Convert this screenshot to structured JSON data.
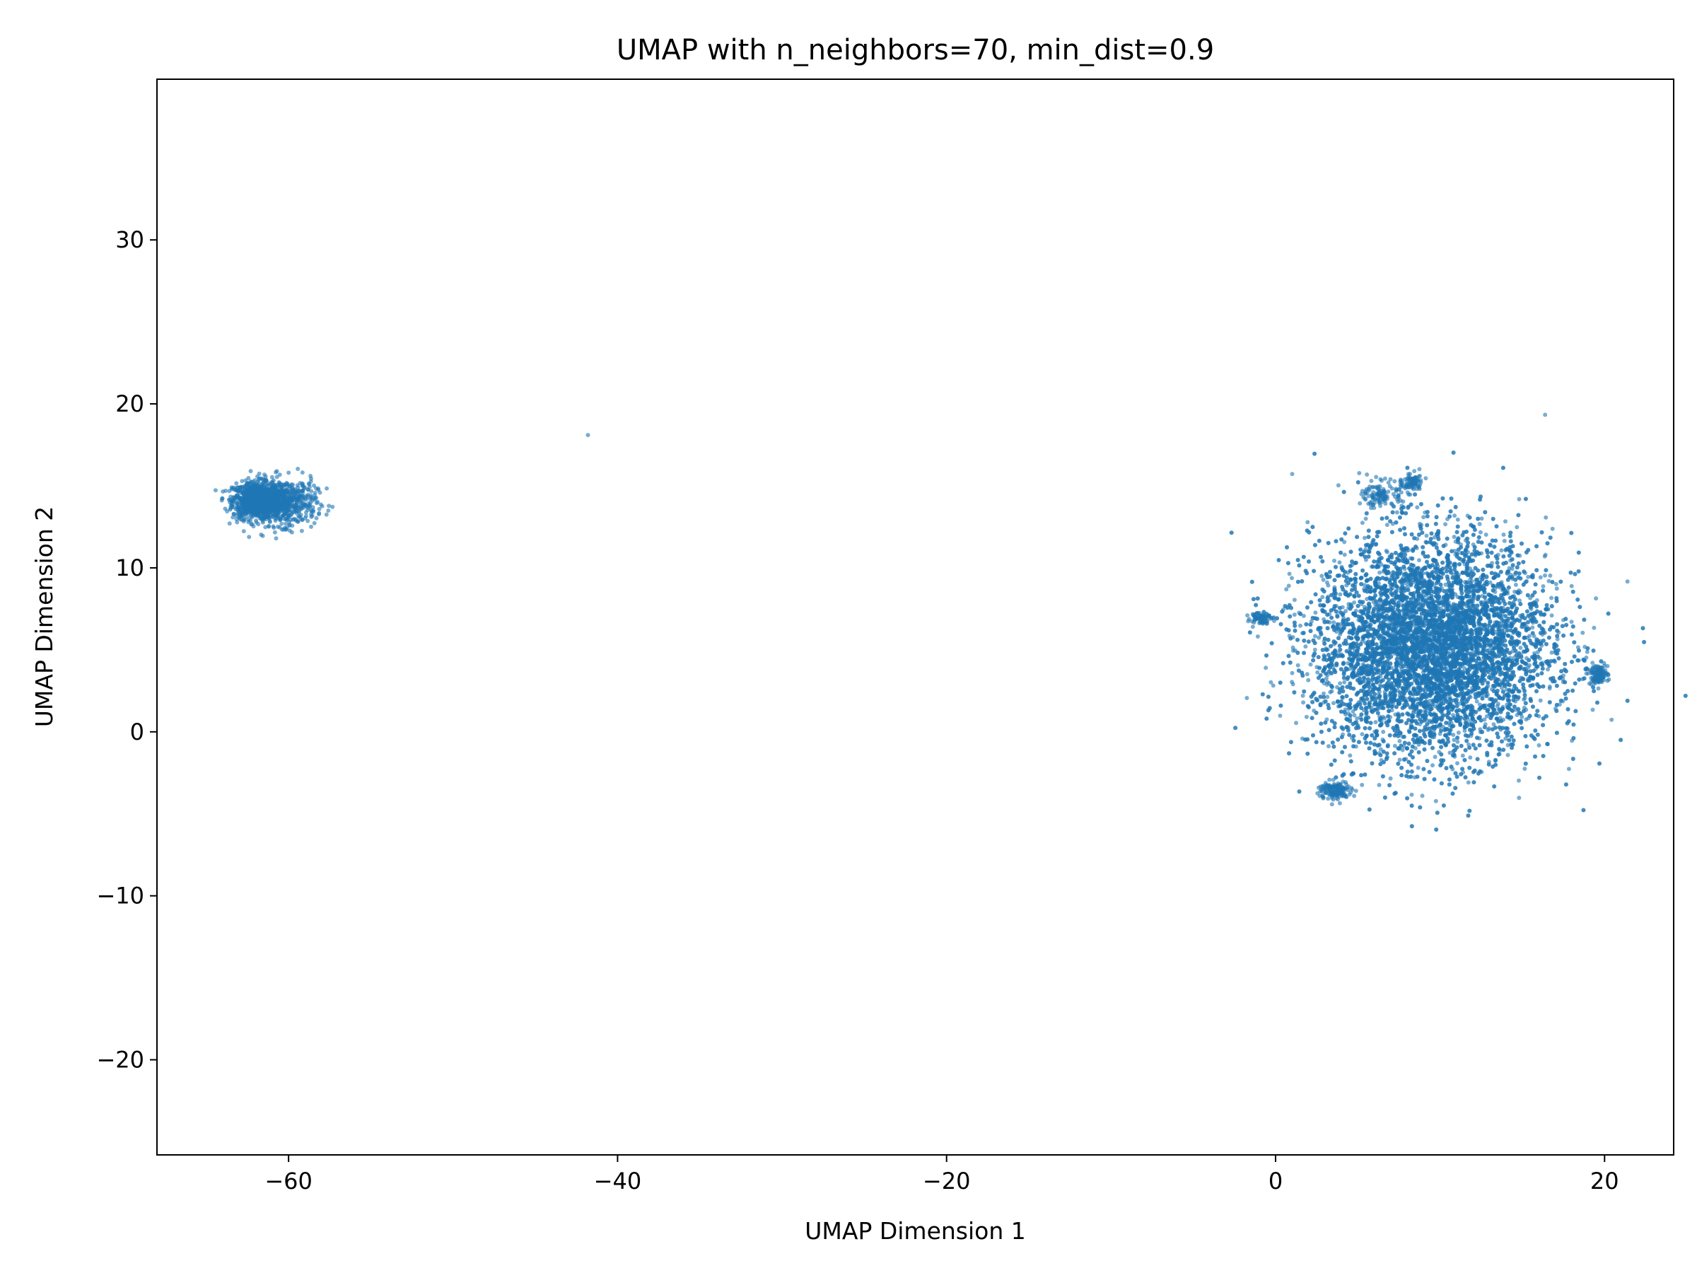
{
  "chart_data": {
    "type": "scatter",
    "title": "UMAP with n_neighbors=70, min_dist=0.9",
    "xlabel": "UMAP Dimension 1",
    "ylabel": "UMAP Dimension 2",
    "xlim": [
      -68,
      24.2
    ],
    "ylim": [
      -25.8,
      39.8
    ],
    "xticks": [
      -60,
      -40,
      -20,
      0,
      20
    ],
    "yticks": [
      -20,
      -10,
      0,
      10,
      20,
      30
    ],
    "xtick_labels": [
      "−60",
      "−40",
      "−20",
      "0",
      "20"
    ],
    "ytick_labels": [
      "−20",
      "−10",
      "0",
      "10",
      "20",
      "30"
    ],
    "grid": false,
    "legend": "none",
    "color": "#1f77b4",
    "point_alpha": 0.6,
    "series": [
      {
        "clusters": [
          {
            "center": [
              -62.0,
              14.1
            ],
            "spread": [
              0.7,
              0.55
            ],
            "approx_points": 900
          },
          {
            "center": [
              -60.3,
              14.0
            ],
            "spread": [
              1.0,
              0.7
            ],
            "approx_points": 600
          },
          {
            "center": [
              -41.8,
              18.1
            ],
            "spread": [
              0.0,
              0.0
            ],
            "approx_points": 1
          },
          {
            "center": [
              9.5,
              5.2
            ],
            "spread": [
              3.6,
              3.3
            ],
            "approx_points": 9000
          },
          {
            "center": [
              19.6,
              3.5
            ],
            "spread": [
              0.3,
              0.3
            ],
            "approx_points": 120
          },
          {
            "center": [
              -0.9,
              7.0
            ],
            "spread": [
              0.3,
              0.2
            ],
            "approx_points": 80
          },
          {
            "center": [
              3.6,
              -3.6
            ],
            "spread": [
              0.5,
              0.3
            ],
            "approx_points": 150
          },
          {
            "center": [
              6.5,
              14.5
            ],
            "spread": [
              0.6,
              0.4
            ],
            "approx_points": 120
          },
          {
            "center": [
              8.3,
              15.2
            ],
            "spread": [
              0.3,
              0.3
            ],
            "approx_points": 80
          }
        ]
      }
    ]
  }
}
